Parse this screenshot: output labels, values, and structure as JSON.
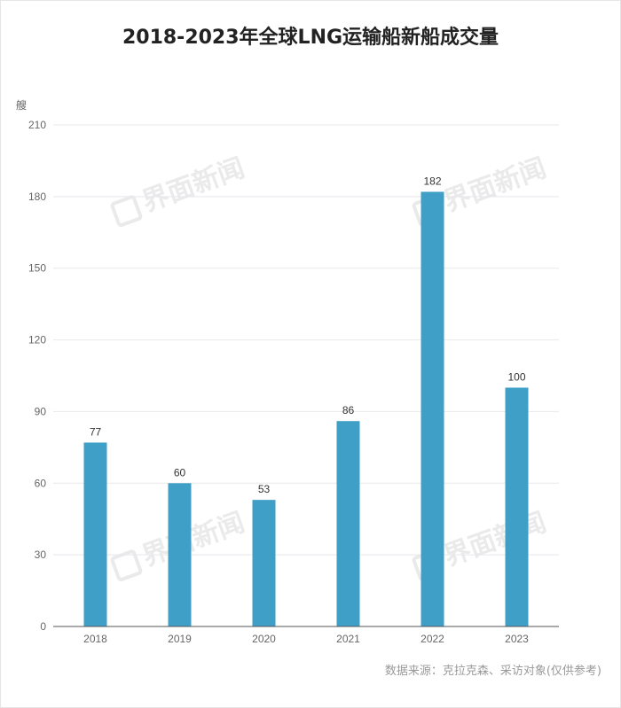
{
  "title": "2018-2023年全球LNG运输船新船成交量",
  "unit_label": "艘",
  "source": "数据来源：克拉克森、采访对象(仅供参考)",
  "watermark_text": "界面新闻",
  "colors": {
    "bar": "#3f9fc6",
    "grid": "#e8e8ee",
    "axis": "#555555",
    "tick": "#666666",
    "label": "#333333"
  },
  "chart_data": {
    "type": "bar",
    "title": "2018-2023年全球LNG运输船新船成交量",
    "xlabel": "",
    "ylabel": "艘",
    "categories": [
      "2018",
      "2019",
      "2020",
      "2021",
      "2022",
      "2023"
    ],
    "values": [
      77,
      60,
      53,
      86,
      182,
      100
    ],
    "ylim": [
      0,
      210
    ],
    "yticks": [
      0,
      30,
      60,
      90,
      120,
      150,
      180,
      210
    ],
    "grid": true,
    "data_labels": true
  }
}
